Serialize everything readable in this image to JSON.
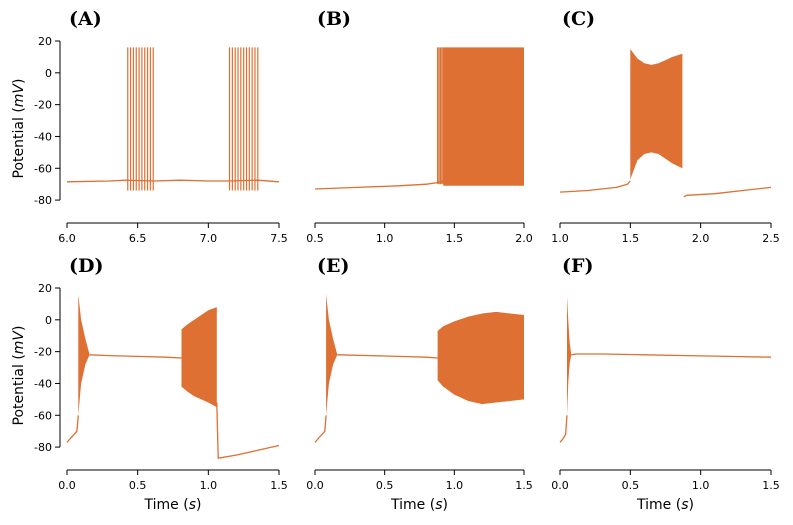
{
  "colors": {
    "trace": "#dd7032",
    "axis": "#000000"
  },
  "chart_data": [
    {
      "type": "line",
      "label": "(A)",
      "xlabel": "",
      "xlabel_unit": "",
      "ylabel": "Potential",
      "ylabel_unit": "mV",
      "xlim": [
        6.0,
        7.5
      ],
      "ylim": [
        -90,
        20
      ],
      "xticks": [
        6.0,
        6.5,
        7.0,
        7.5
      ],
      "xtick_labels": [
        "6.0",
        "6.5",
        "7.0",
        "7.5"
      ],
      "yticks": [
        20,
        0,
        -20,
        -40,
        -60,
        -80
      ],
      "ytick_labels": [
        "20",
        "0",
        "-20",
        "-40",
        "-60",
        "-80"
      ],
      "series": [
        {
          "name": "membrane potential",
          "x": [
            6.0,
            6.3,
            6.42,
            6.62,
            6.8,
            7.0,
            7.14,
            7.35,
            7.5
          ],
          "y": [
            -68.5,
            -68,
            -67.5,
            -68,
            -67.5,
            -68,
            -68,
            -67.5,
            -68.5
          ]
        }
      ],
      "spikes": [
        {
          "x": [
            6.43,
            6.45,
            6.47,
            6.49,
            6.51,
            6.53,
            6.55,
            6.57,
            6.59,
            6.61
          ],
          "peak": 16,
          "trough": -74
        },
        {
          "x": [
            7.15,
            7.17,
            7.19,
            7.21,
            7.23,
            7.25,
            7.27,
            7.29,
            7.31,
            7.33,
            7.35
          ],
          "peak": 16,
          "trough": -74
        }
      ],
      "bands": []
    },
    {
      "type": "line",
      "label": "(B)",
      "xlabel": "",
      "xlabel_unit": "",
      "ylabel": "",
      "ylabel_unit": "",
      "xlim": [
        0.5,
        2.0
      ],
      "ylim": [
        -90,
        20
      ],
      "xticks": [
        0.5,
        1.0,
        1.5,
        2.0
      ],
      "xtick_labels": [
        "0.5",
        "1.0",
        "1.5",
        "2.0"
      ],
      "yticks": [],
      "ytick_labels": [],
      "series": [
        {
          "name": "membrane potential",
          "x": [
            0.5,
            0.8,
            1.1,
            1.3,
            1.38,
            1.42
          ],
          "y": [
            -73,
            -72,
            -71,
            -70,
            -69,
            -68
          ]
        }
      ],
      "spikes": [
        {
          "x": [
            1.38,
            1.39,
            1.4,
            1.41,
            1.42
          ],
          "peak": 16,
          "trough": -70
        }
      ],
      "bands": [
        {
          "x": [
            1.42,
            1.5,
            1.6,
            1.7,
            1.8,
            1.9,
            2.0
          ],
          "upper": [
            16,
            16,
            16,
            16,
            16,
            16,
            16
          ],
          "lower": [
            -71,
            -71,
            -71,
            -71,
            -71,
            -71,
            -71
          ]
        }
      ]
    },
    {
      "type": "line",
      "label": "(C)",
      "xlabel": "",
      "xlabel_unit": "",
      "ylabel": "",
      "ylabel_unit": "",
      "xlim": [
        1.0,
        2.5
      ],
      "ylim": [
        -90,
        20
      ],
      "xticks": [
        1.0,
        1.5,
        2.0,
        2.5
      ],
      "xtick_labels": [
        "1.0",
        "1.5",
        "2.0",
        "2.5"
      ],
      "yticks": [],
      "ytick_labels": [],
      "series": [
        {
          "name": "membrane potential pre",
          "x": [
            1.0,
            1.2,
            1.4,
            1.48,
            1.5
          ],
          "y": [
            -75,
            -74,
            -72,
            -70,
            -68
          ]
        },
        {
          "name": "membrane potential post",
          "x": [
            1.88,
            1.9,
            2.1,
            2.3,
            2.5
          ],
          "y": [
            -78,
            -77,
            -76,
            -74,
            -72
          ]
        }
      ],
      "spikes": [],
      "bands": [
        {
          "x": [
            1.5,
            1.55,
            1.6,
            1.65,
            1.7,
            1.75,
            1.8,
            1.87
          ],
          "upper": [
            15,
            9,
            6,
            5,
            6,
            8,
            10,
            12
          ],
          "lower": [
            -67,
            -55,
            -51,
            -50,
            -51,
            -54,
            -57,
            -60
          ]
        }
      ]
    },
    {
      "type": "line",
      "label": "(D)",
      "xlabel": "Time",
      "xlabel_unit": "s",
      "ylabel": "Potential",
      "ylabel_unit": "mV",
      "xlim": [
        0.0,
        1.5
      ],
      "ylim": [
        -90,
        20
      ],
      "xticks": [
        0.0,
        0.5,
        1.0,
        1.5
      ],
      "xtick_labels": [
        "0.0",
        "0.5",
        "1.0",
        "1.5"
      ],
      "yticks": [
        20,
        0,
        -20,
        -40,
        -60,
        -80
      ],
      "ytick_labels": [
        "20",
        "0",
        "-20",
        "-40",
        "-60",
        "-80"
      ],
      "series": [
        {
          "name": "membrane potential rise",
          "x": [
            0.0,
            0.03,
            0.05,
            0.07,
            0.08
          ],
          "y": [
            -77,
            -74,
            -72,
            -70,
            -60
          ]
        },
        {
          "name": "membrane potential plateau",
          "x": [
            0.16,
            0.3,
            0.5,
            0.7,
            0.81
          ],
          "y": [
            -22,
            -22.5,
            -23,
            -23.5,
            -24
          ]
        },
        {
          "name": "membrane potential post",
          "x": [
            1.06,
            1.07,
            1.2,
            1.35,
            1.5
          ],
          "y": [
            -52,
            -87,
            -85,
            -82,
            -79
          ]
        }
      ],
      "spikes": [],
      "bands": [
        {
          "x": [
            0.08,
            0.1,
            0.13,
            0.16
          ],
          "upper": [
            16,
            0,
            -12,
            -22
          ],
          "lower": [
            -60,
            -40,
            -28,
            -22
          ]
        },
        {
          "x": [
            0.81,
            0.85,
            0.9,
            0.95,
            1.0,
            1.06
          ],
          "upper": [
            -6,
            -3,
            0,
            3,
            6,
            8
          ],
          "lower": [
            -42,
            -45,
            -48,
            -50,
            -52,
            -55
          ]
        }
      ]
    },
    {
      "type": "line",
      "label": "(E)",
      "xlabel": "Time",
      "xlabel_unit": "s",
      "ylabel": "",
      "ylabel_unit": "",
      "xlim": [
        0.0,
        1.5
      ],
      "ylim": [
        -90,
        20
      ],
      "xticks": [
        0.0,
        0.5,
        1.0,
        1.5
      ],
      "xtick_labels": [
        "0.0",
        "0.5",
        "1.0",
        "1.5"
      ],
      "yticks": [],
      "ytick_labels": [],
      "series": [
        {
          "name": "membrane potential rise",
          "x": [
            0.0,
            0.03,
            0.05,
            0.07,
            0.08
          ],
          "y": [
            -77,
            -74,
            -72,
            -70,
            -60
          ]
        },
        {
          "name": "membrane potential plateau",
          "x": [
            0.16,
            0.4,
            0.6,
            0.8,
            0.88
          ],
          "y": [
            -22,
            -22.5,
            -23,
            -23.5,
            -24
          ]
        }
      ],
      "spikes": [],
      "bands": [
        {
          "x": [
            0.08,
            0.1,
            0.13,
            0.16
          ],
          "upper": [
            16,
            0,
            -12,
            -22
          ],
          "lower": [
            -60,
            -40,
            -28,
            -22
          ]
        },
        {
          "x": [
            0.88,
            0.92,
            1.0,
            1.1,
            1.2,
            1.3,
            1.4,
            1.5
          ],
          "upper": [
            -7,
            -4,
            -1,
            2,
            4,
            5,
            4,
            3
          ],
          "lower": [
            -38,
            -42,
            -47,
            -51,
            -53,
            -52,
            -51,
            -50
          ]
        }
      ]
    },
    {
      "type": "line",
      "label": "(F)",
      "xlabel": "Time",
      "xlabel_unit": "s",
      "ylabel": "",
      "ylabel_unit": "",
      "xlim": [
        0.0,
        1.5
      ],
      "ylim": [
        -90,
        20
      ],
      "xticks": [
        0.0,
        0.5,
        1.0,
        1.5
      ],
      "xtick_labels": [
        "0.0",
        "0.5",
        "1.0",
        "1.5"
      ],
      "yticks": [],
      "ytick_labels": [],
      "series": [
        {
          "name": "membrane potential rise",
          "x": [
            0.0,
            0.02,
            0.04,
            0.05
          ],
          "y": [
            -77,
            -75,
            -72,
            -60
          ]
        },
        {
          "name": "membrane potential plateau",
          "x": [
            0.08,
            0.12,
            0.3,
            0.6,
            0.9,
            1.2,
            1.5
          ],
          "y": [
            -22,
            -21.5,
            -21.5,
            -22,
            -22.5,
            -23,
            -23.5
          ]
        }
      ],
      "spikes": [],
      "bands": [
        {
          "x": [
            0.05,
            0.06,
            0.07,
            0.08
          ],
          "upper": [
            15,
            -2,
            -15,
            -22
          ],
          "lower": [
            -60,
            -38,
            -27,
            -22
          ]
        }
      ]
    }
  ]
}
